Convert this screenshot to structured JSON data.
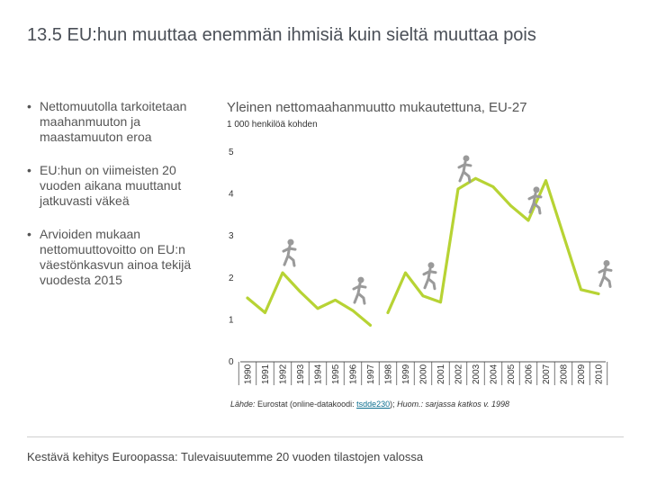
{
  "slide": {
    "number": "13.5",
    "title": "EU:hun muuttaa enemmän ihmisiä kuin sieltä muuttaa pois",
    "bullets": [
      "Nettomuutolla tarkoitetaan maahanmuuton ja maastamuuton eroa",
      "EU:hun on viimeisten 20 vuoden aikana muuttanut jatkuvasti väkeä",
      "Arvioiden mukaan nettomuuttovoitto on EU:n väestönkasvun ainoa tekijä vuodesta 2015"
    ],
    "source_label": "Lähde:",
    "source_text": " Eurostat (online-datakoodi: ",
    "source_link": "tsdde230",
    "source_after": ");",
    "note_label": " Huom.:",
    "note_text": " sarjassa katkos v. 1998",
    "footer": "Kestävä kehitys Euroopassa: Tulevaisuutemme 20 vuoden tilastojen valossa"
  },
  "colors": {
    "line": "#b7d334",
    "icon": "#9a9a9a",
    "text": "#4a4f57"
  },
  "icons": [
    "walking-person-icon"
  ],
  "chart_data": {
    "type": "line",
    "title": "Yleinen nettomaahanmuutto mukautettuna, EU-27",
    "ylabel": "1 000 henkilöä kohden",
    "xlabel": "",
    "ylim": [
      0,
      5
    ],
    "yticks": [
      0,
      1,
      2,
      3,
      4,
      5
    ],
    "categories": [
      "1990",
      "1991",
      "1992",
      "1993",
      "1994",
      "1995",
      "1996",
      "1997",
      "1998",
      "1999",
      "2000",
      "2001",
      "2002",
      "2003",
      "2004",
      "2005",
      "2006",
      "2007",
      "2008",
      "2009",
      "2010"
    ],
    "break_after": "1997",
    "series": [
      {
        "name": "Nettomaahanmuutto",
        "values": [
          1.5,
          1.15,
          2.1,
          1.65,
          1.25,
          1.45,
          1.2,
          0.85,
          1.15,
          2.1,
          1.55,
          1.4,
          4.1,
          4.35,
          4.15,
          3.7,
          3.35,
          4.3,
          3.0,
          1.7,
          1.6
        ]
      }
    ]
  }
}
